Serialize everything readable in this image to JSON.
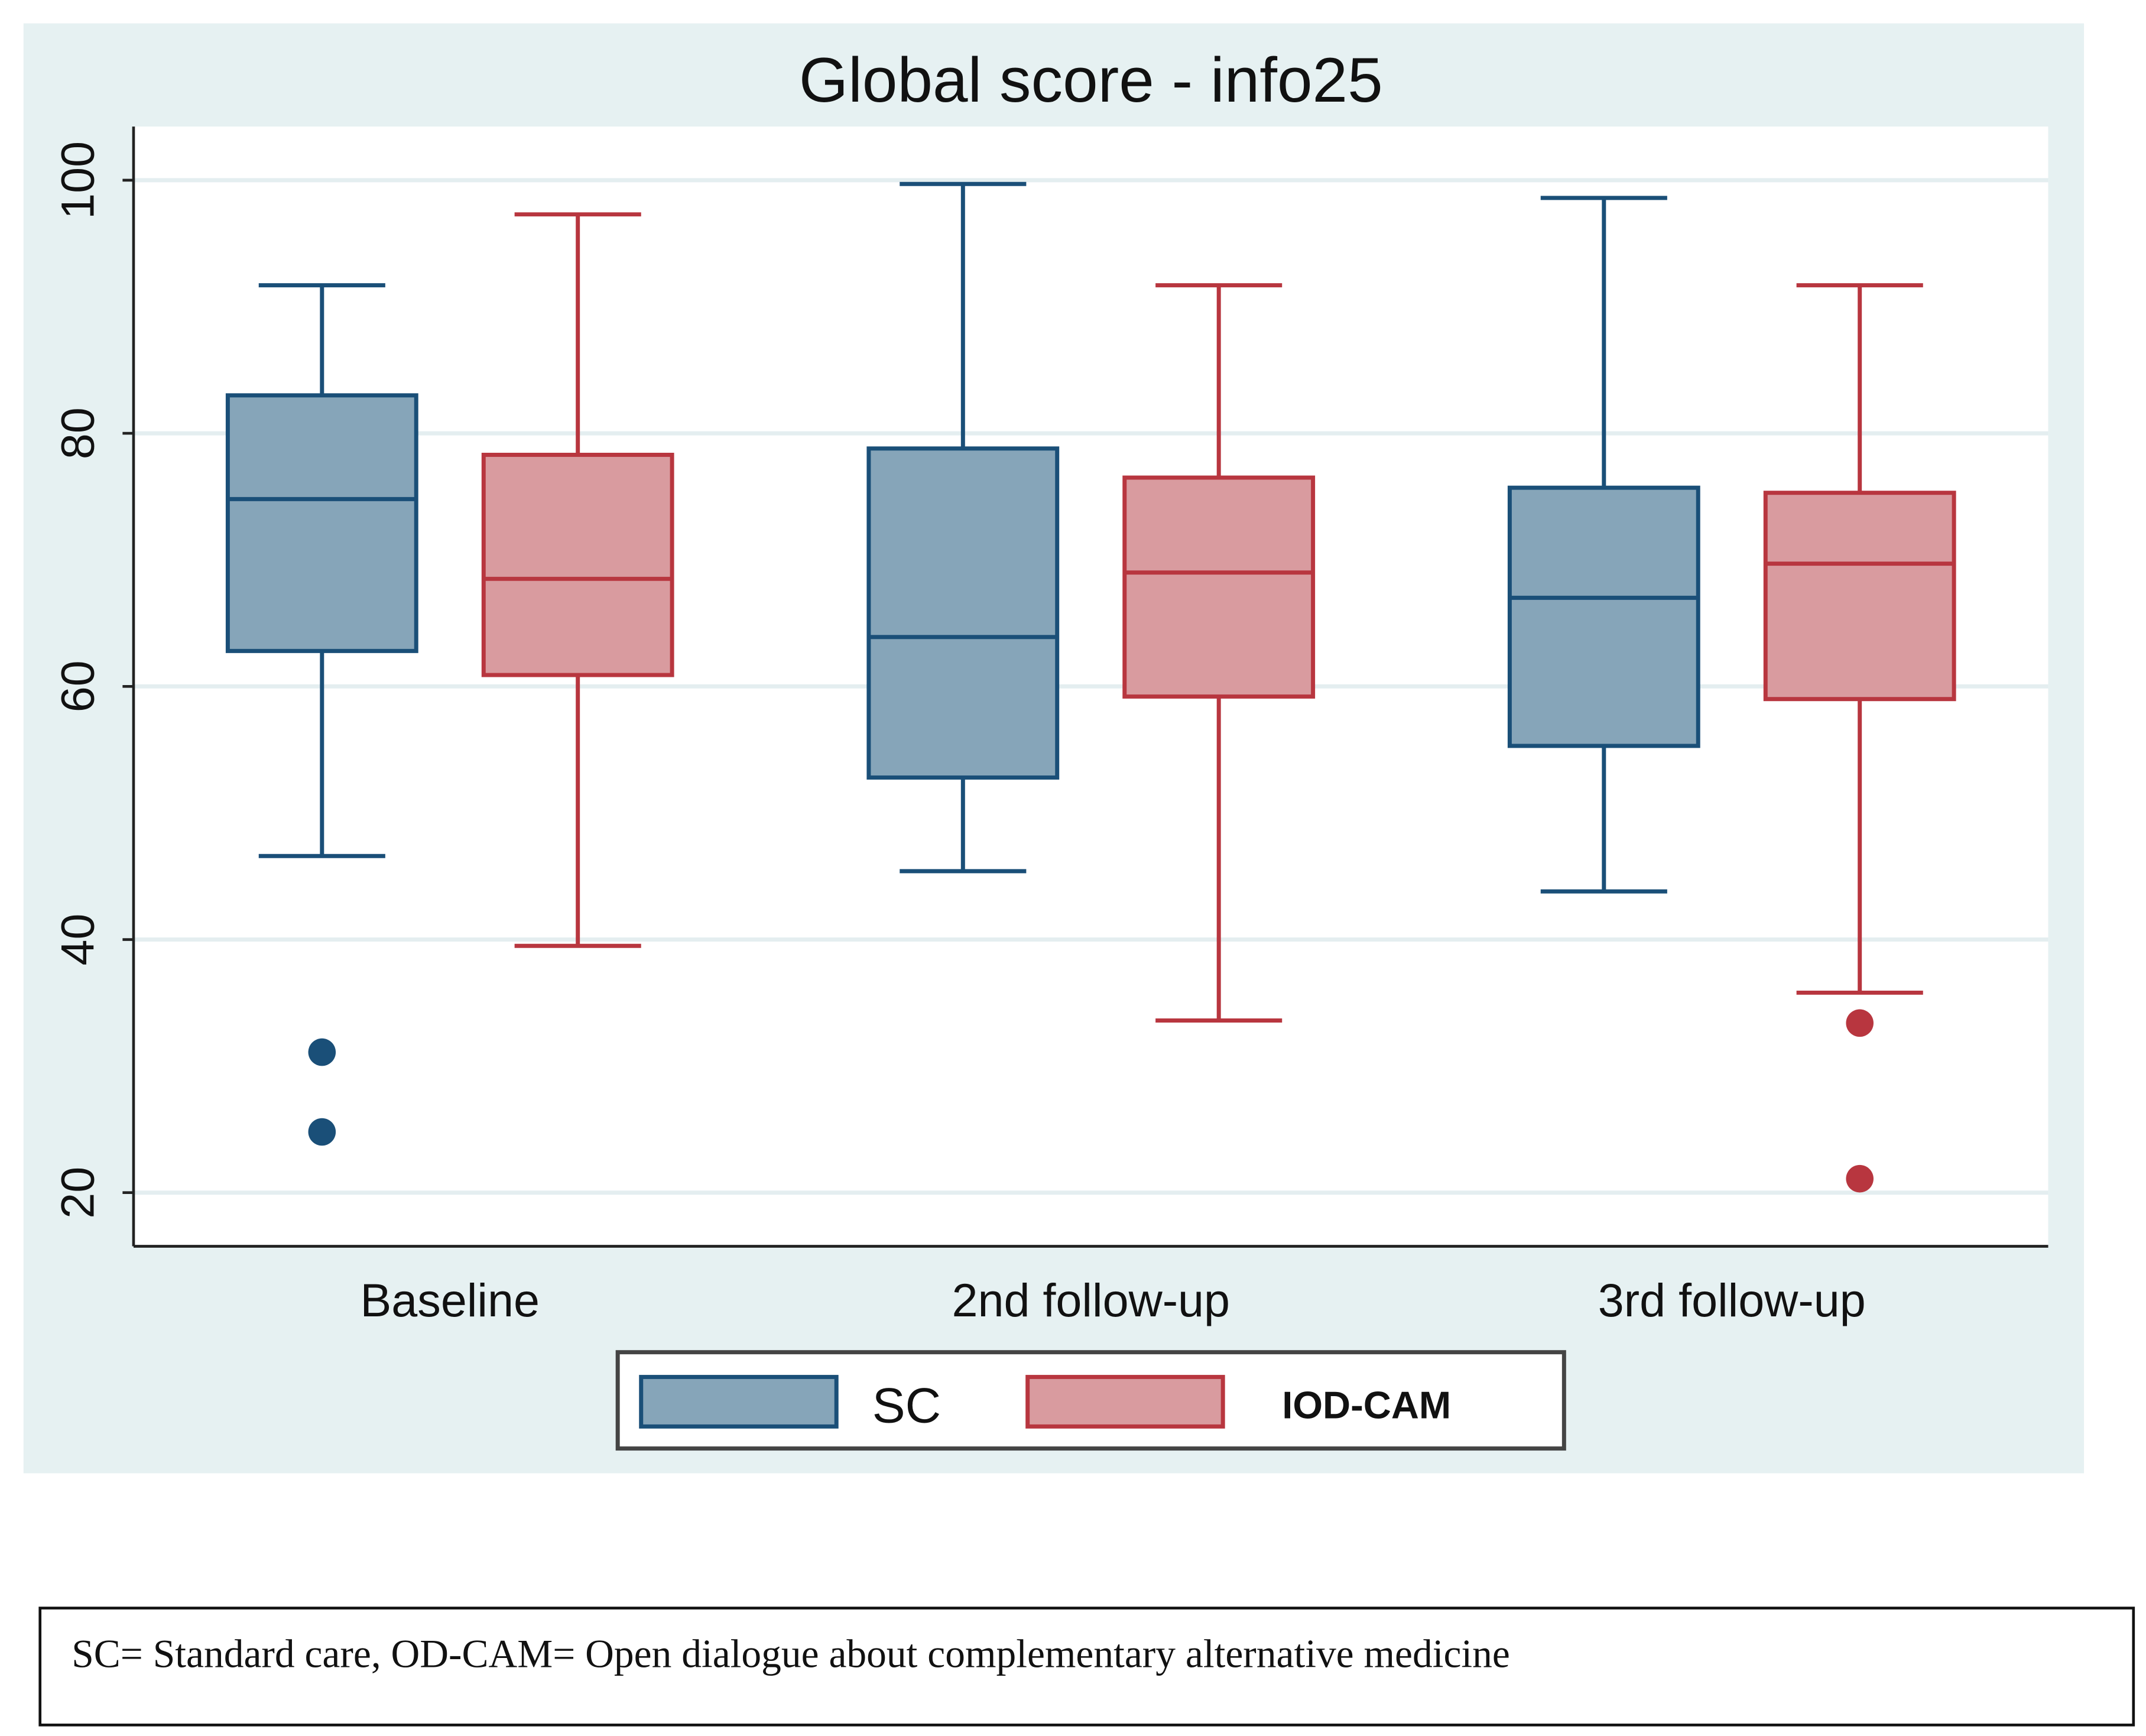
{
  "chart_data": {
    "type": "box",
    "title": "Global score - info25",
    "xlabel": "",
    "ylabel": "",
    "ylim": [
      15,
      104
    ],
    "yticks": [
      20,
      40,
      60,
      80,
      100
    ],
    "ytick_labels": [
      "20",
      "40",
      "60",
      "80",
      "100"
    ],
    "grid": true,
    "categories": [
      "Baseline",
      "2nd follow-up",
      "3rd follow-up"
    ],
    "legend_position": "bottom",
    "series": [
      {
        "name": "SC",
        "fill": "#86a5b9",
        "stroke": "#1a4f78",
        "boxes": [
          {
            "whisker_low": 46.6,
            "q1": 62.8,
            "median": 74.8,
            "q3": 83.0,
            "whisker_high": 91.7,
            "outliers": [
              31.1,
              24.8
            ]
          },
          {
            "whisker_low": 45.4,
            "q1": 52.8,
            "median": 63.9,
            "q3": 78.8,
            "whisker_high": 99.7,
            "outliers": []
          },
          {
            "whisker_low": 43.8,
            "q1": 55.3,
            "median": 67.0,
            "q3": 75.7,
            "whisker_high": 98.6,
            "outliers": []
          }
        ]
      },
      {
        "name": "IOD-CAM",
        "fill": "#d99b9f",
        "stroke": "#b8363f",
        "boxes": [
          {
            "whisker_low": 39.5,
            "q1": 60.9,
            "median": 68.5,
            "q3": 78.3,
            "whisker_high": 97.3,
            "outliers": []
          },
          {
            "whisker_low": 33.6,
            "q1": 59.2,
            "median": 69.0,
            "q3": 76.5,
            "whisker_high": 91.7,
            "outliers": []
          },
          {
            "whisker_low": 35.8,
            "q1": 59.0,
            "median": 69.7,
            "q3": 75.3,
            "whisker_high": 91.7,
            "outliers": [
              33.4,
              21.1
            ]
          }
        ]
      }
    ]
  },
  "footnote": "SC= Standard care, OD-CAM= Open dialogue about complementary alternative medicine"
}
